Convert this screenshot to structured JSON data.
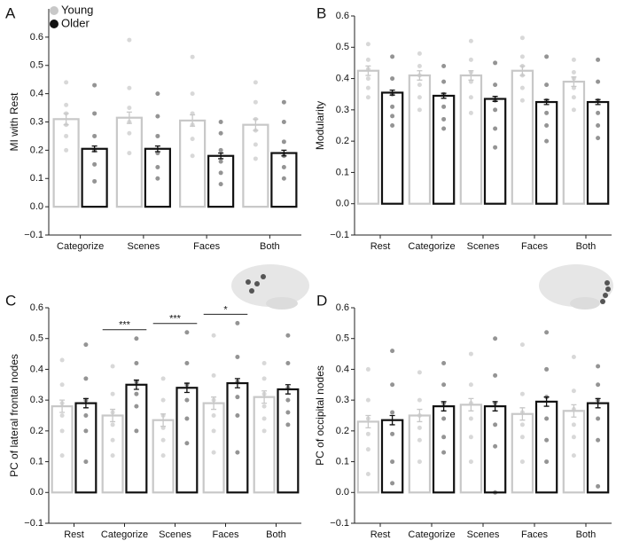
{
  "chart_data": [
    {
      "type": "bar",
      "panel": "A",
      "ylabel": "MI with Rest",
      "categories": [
        "Categorize",
        "Scenes",
        "Faces",
        "Both"
      ],
      "series": [
        {
          "name": "Young",
          "color": "#c8c8c8",
          "values": [
            0.31,
            0.315,
            0.305,
            0.29
          ],
          "errors": [
            0.02,
            0.02,
            0.02,
            0.02
          ],
          "points": [
            [
              0.44,
              0.36,
              0.33,
              0.29,
              0.25,
              0.2
            ],
            [
              0.59,
              0.42,
              0.35,
              0.3,
              0.26,
              0.19
            ],
            [
              0.53,
              0.4,
              0.33,
              0.29,
              0.24,
              0.18
            ],
            [
              0.44,
              0.37,
              0.31,
              0.27,
              0.22,
              0.17
            ]
          ]
        },
        {
          "name": "Older",
          "color": "#111111",
          "values": [
            0.205,
            0.205,
            0.18,
            0.19
          ],
          "errors": [
            0.01,
            0.01,
            0.01,
            0.01
          ],
          "points": [
            [
              0.43,
              0.33,
              0.25,
              0.2,
              0.15,
              0.09
            ],
            [
              0.4,
              0.32,
              0.25,
              0.19,
              0.14,
              0.1
            ],
            [
              0.3,
              0.26,
              0.2,
              0.16,
              0.12,
              0.08
            ],
            [
              0.37,
              0.3,
              0.23,
              0.18,
              0.14,
              0.1
            ]
          ]
        }
      ],
      "ylim": [
        -0.1,
        0.7
      ],
      "yticks": [
        {
          "value": -0.1,
          "label": "−0.1"
        },
        {
          "value": 0,
          "label": "0.0"
        },
        {
          "value": 0.1,
          "label": "0.1"
        },
        {
          "value": 0.2,
          "label": "0.2"
        },
        {
          "value": 0.3,
          "label": "0.3"
        },
        {
          "value": 0.4,
          "label": "0.4"
        },
        {
          "value": 0.5,
          "label": "0.5"
        },
        {
          "value": 0.6,
          "label": "0.6"
        }
      ],
      "legend": "upper left"
    },
    {
      "type": "bar",
      "panel": "B",
      "ylabel": "Modularity",
      "categories": [
        "Rest",
        "Categorize",
        "Scenes",
        "Faces",
        "Both"
      ],
      "series": [
        {
          "color": "#c8c8c8",
          "values": [
            0.425,
            0.41,
            0.41,
            0.425,
            0.39
          ],
          "errors": [
            0.015,
            0.015,
            0.015,
            0.015,
            0.015
          ],
          "points": [
            [
              0.51,
              0.46,
              0.43,
              0.4,
              0.37,
              0.34
            ],
            [
              0.48,
              0.44,
              0.41,
              0.38,
              0.34,
              0.3
            ],
            [
              0.52,
              0.46,
              0.42,
              0.39,
              0.34,
              0.29
            ],
            [
              0.53,
              0.47,
              0.44,
              0.41,
              0.37,
              0.33
            ],
            [
              0.46,
              0.42,
              0.4,
              0.37,
              0.34,
              0.3
            ]
          ]
        },
        {
          "color": "#111111",
          "values": [
            0.355,
            0.345,
            0.335,
            0.325,
            0.325
          ],
          "errors": [
            0.008,
            0.008,
            0.008,
            0.008,
            0.008
          ],
          "points": [
            [
              0.47,
              0.4,
              0.35,
              0.31,
              0.28,
              0.25
            ],
            [
              0.44,
              0.39,
              0.35,
              0.31,
              0.27,
              0.24
            ],
            [
              0.45,
              0.38,
              0.33,
              0.3,
              0.24,
              0.18
            ],
            [
              0.47,
              0.38,
              0.33,
              0.29,
              0.25,
              0.2
            ],
            [
              0.46,
              0.39,
              0.33,
              0.29,
              0.25,
              0.21
            ]
          ]
        }
      ],
      "ylim": [
        -0.1,
        0.6
      ],
      "yticks": [
        {
          "value": -0.1,
          "label": "−0.1"
        },
        {
          "value": 0,
          "label": "0.0"
        },
        {
          "value": 0.1,
          "label": "0.1"
        },
        {
          "value": 0.2,
          "label": "0.2"
        },
        {
          "value": 0.3,
          "label": "0.3"
        },
        {
          "value": 0.4,
          "label": "0.4"
        },
        {
          "value": 0.5,
          "label": "0.5"
        },
        {
          "value": 0.6,
          "label": "0.6"
        }
      ]
    },
    {
      "type": "bar",
      "panel": "C",
      "ylabel": "PC of lateral frontal nodes",
      "categories": [
        "Rest",
        "Categorize",
        "Scenes",
        "Faces",
        "Both"
      ],
      "series": [
        {
          "color": "#c8c8c8",
          "values": [
            0.28,
            0.25,
            0.235,
            0.29,
            0.31
          ],
          "errors": [
            0.02,
            0.02,
            0.02,
            0.02,
            0.02
          ],
          "points": [
            [
              0.43,
              0.35,
              0.29,
              0.25,
              0.2,
              0.12
            ],
            [
              0.41,
              0.32,
              0.26,
              0.22,
              0.17,
              0.12
            ],
            [
              0.37,
              0.3,
              0.25,
              0.21,
              0.17,
              0.12
            ],
            [
              0.51,
              0.38,
              0.3,
              0.25,
              0.2,
              0.13
            ],
            [
              0.42,
              0.37,
              0.32,
              0.28,
              0.24,
              0.2
            ]
          ]
        },
        {
          "color": "#111111",
          "values": [
            0.29,
            0.35,
            0.34,
            0.355,
            0.335
          ],
          "errors": [
            0.015,
            0.015,
            0.015,
            0.015,
            0.015
          ],
          "points": [
            [
              0.48,
              0.37,
              0.3,
              0.25,
              0.2,
              0.1
            ],
            [
              0.5,
              0.42,
              0.36,
              0.32,
              0.28,
              0.2
            ],
            [
              0.52,
              0.42,
              0.35,
              0.3,
              0.24,
              0.16
            ],
            [
              0.55,
              0.44,
              0.36,
              0.31,
              0.25,
              0.13
            ],
            [
              0.51,
              0.42,
              0.34,
              0.3,
              0.26,
              0.22
            ]
          ]
        }
      ],
      "annotations": [
        {
          "category": "Categorize",
          "label": "***"
        },
        {
          "category": "Scenes",
          "label": "***"
        },
        {
          "category": "Faces",
          "label": "*"
        }
      ],
      "ylim": [
        -0.1,
        0.6
      ],
      "yticks": [
        {
          "value": -0.1,
          "label": "−0.1"
        },
        {
          "value": 0,
          "label": "0.0"
        },
        {
          "value": 0.1,
          "label": "0.1"
        },
        {
          "value": 0.2,
          "label": "0.2"
        },
        {
          "value": 0.3,
          "label": "0.3"
        },
        {
          "value": 0.4,
          "label": "0.4"
        },
        {
          "value": 0.5,
          "label": "0.5"
        },
        {
          "value": 0.6,
          "label": "0.6"
        }
      ]
    },
    {
      "type": "bar",
      "panel": "D",
      "ylabel": "PC of occipital nodes",
      "categories": [
        "Rest",
        "Categorize",
        "Scenes",
        "Faces",
        "Both"
      ],
      "series": [
        {
          "color": "#c8c8c8",
          "values": [
            0.23,
            0.25,
            0.285,
            0.255,
            0.265
          ],
          "errors": [
            0.02,
            0.02,
            0.02,
            0.02,
            0.02
          ],
          "points": [
            [
              0.4,
              0.3,
              0.24,
              0.19,
              0.14,
              0.06
            ],
            [
              0.39,
              0.3,
              0.25,
              0.21,
              0.17,
              0.1
            ],
            [
              0.45,
              0.35,
              0.29,
              0.24,
              0.18,
              0.1
            ],
            [
              0.48,
              0.32,
              0.26,
              0.22,
              0.18,
              0.1
            ],
            [
              0.44,
              0.33,
              0.27,
              0.22,
              0.18,
              0.12
            ]
          ]
        },
        {
          "color": "#111111",
          "values": [
            0.235,
            0.28,
            0.28,
            0.295,
            0.29
          ],
          "errors": [
            0.015,
            0.015,
            0.015,
            0.015,
            0.015
          ],
          "points": [
            [
              0.46,
              0.35,
              0.26,
              0.19,
              0.1,
              0.03
            ],
            [
              0.42,
              0.35,
              0.29,
              0.24,
              0.18,
              0.13
            ],
            [
              0.5,
              0.38,
              0.29,
              0.22,
              0.15,
              0.0
            ],
            [
              0.52,
              0.4,
              0.31,
              0.24,
              0.17,
              0.1
            ],
            [
              0.41,
              0.35,
              0.3,
              0.24,
              0.17,
              0.02
            ]
          ]
        }
      ],
      "ylim": [
        -0.1,
        0.6
      ],
      "yticks": [
        {
          "value": -0.1,
          "label": "−0.1"
        },
        {
          "value": 0,
          "label": "0.0"
        },
        {
          "value": 0.1,
          "label": "0.1"
        },
        {
          "value": 0.2,
          "label": "0.2"
        },
        {
          "value": 0.3,
          "label": "0.3"
        },
        {
          "value": 0.4,
          "label": "0.4"
        },
        {
          "value": 0.5,
          "label": "0.5"
        },
        {
          "value": 0.6,
          "label": "0.6"
        }
      ]
    }
  ]
}
